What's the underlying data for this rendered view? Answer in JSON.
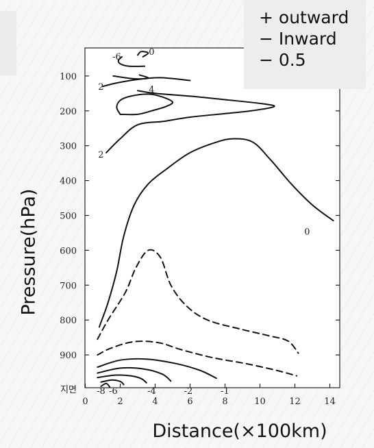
{
  "chart_data": {
    "type": "contour",
    "xlabel": "Distance(×100km)",
    "ylabel": "Pressure(hPa)",
    "x_ticks": [
      "0",
      "2",
      "4",
      "6",
      "8",
      "10",
      "12",
      "14"
    ],
    "y_ticks": [
      "100",
      "200",
      "300",
      "400",
      "500",
      "600",
      "700",
      "800",
      "900",
      "지면"
    ],
    "xlim": [
      0,
      15
    ],
    "ylim": [
      "지면",
      0
    ],
    "legend": [
      {
        "sign": "+",
        "label": "outward"
      },
      {
        "sign": "−",
        "label": "Inward"
      },
      {
        "sign": "−",
        "label": "0.5"
      }
    ],
    "contours": [
      {
        "level": "0",
        "style": "solid",
        "points": [
          [
            0.8,
            820
          ],
          [
            1.3,
            750
          ],
          [
            1.8,
            660
          ],
          [
            2.2,
            560
          ],
          [
            2.8,
            470
          ],
          [
            3.6,
            410
          ],
          [
            4.7,
            365
          ],
          [
            6,
            320
          ],
          [
            7.5,
            290
          ],
          [
            8.5,
            280
          ],
          [
            9.6,
            290
          ],
          [
            10.6,
            340
          ],
          [
            11.8,
            410
          ],
          [
            13,
            470
          ],
          [
            14.2,
            515
          ]
        ]
      },
      {
        "level": "2",
        "style": "solid",
        "points": [
          [
            1.2,
            320
          ],
          [
            2,
            280
          ],
          [
            3,
            240
          ],
          [
            4.5,
            230
          ],
          [
            6,
            218
          ],
          [
            8,
            208
          ],
          [
            9.5,
            200
          ],
          [
            10.8,
            188
          ],
          [
            10.2,
            180
          ],
          [
            8,
            168
          ],
          [
            6,
            158
          ],
          [
            4,
            150
          ],
          [
            3,
            142
          ]
        ]
      },
      {
        "level": "4",
        "style": "solid",
        "points": [
          [
            2,
            210
          ],
          [
            1.8,
            190
          ],
          [
            2,
            170
          ],
          [
            2.6,
            158
          ],
          [
            3.6,
            152
          ],
          [
            4.4,
            160
          ],
          [
            5,
            175
          ],
          [
            4.6,
            188
          ],
          [
            3.8,
            200
          ],
          [
            3,
            210
          ],
          [
            2,
            210
          ]
        ]
      },
      {
        "level": "2",
        "style": "solid",
        "points": [
          [
            1,
            130
          ],
          [
            1.8,
            120
          ],
          [
            3,
            110
          ],
          [
            4.3,
            105
          ],
          [
            6,
            113
          ]
        ]
      },
      {
        "level": "-2",
        "style": "solid",
        "points": [
          [
            1.6,
            100
          ],
          [
            2.8,
            108
          ],
          [
            3.6,
            106
          ],
          [
            3.1,
            97
          ]
        ]
      },
      {
        "level": "-6",
        "style": "solid",
        "points": [
          [
            2.1,
            45
          ],
          [
            1.9,
            55
          ],
          [
            2,
            65
          ],
          [
            2.5,
            72
          ],
          [
            3.4,
            72
          ]
        ]
      },
      {
        "level": "0",
        "style": "solid",
        "points": [
          [
            3,
            40
          ],
          [
            3.2,
            30
          ],
          [
            3.6,
            34
          ],
          [
            3.3,
            45
          ]
        ]
      },
      {
        "level": "-0.5",
        "style": "dashed",
        "points": [
          [
            0.7,
            855
          ],
          [
            1.3,
            800
          ],
          [
            2.3,
            720
          ],
          [
            2.9,
            650
          ],
          [
            3.6,
            600
          ],
          [
            4.3,
            620
          ],
          [
            4.9,
            700
          ],
          [
            5.8,
            760
          ],
          [
            7,
            800
          ],
          [
            8.8,
            825
          ],
          [
            10.5,
            845
          ],
          [
            11.6,
            860
          ],
          [
            12.2,
            895
          ]
        ]
      },
      {
        "level": "-0.5",
        "style": "dashed",
        "points": [
          [
            0.7,
            900
          ],
          [
            1.5,
            880
          ],
          [
            2.8,
            862
          ],
          [
            4.2,
            865
          ],
          [
            5.5,
            885
          ],
          [
            7.3,
            908
          ],
          [
            9.2,
            925
          ],
          [
            11,
            945
          ],
          [
            12.1,
            960
          ]
        ]
      },
      {
        "level": "-1",
        "style": "solid",
        "points": [
          [
            0.7,
            935
          ],
          [
            2,
            915
          ],
          [
            3.5,
            912
          ],
          [
            5.2,
            925
          ],
          [
            6.6,
            945
          ],
          [
            7.5,
            967
          ]
        ]
      },
      {
        "level": "-2",
        "style": "solid",
        "points": [
          [
            0.7,
            952
          ],
          [
            2,
            938
          ],
          [
            3.3,
            940
          ],
          [
            4.4,
            955
          ],
          [
            4.9,
            975
          ]
        ]
      },
      {
        "level": "-4",
        "style": "solid",
        "points": [
          [
            0.7,
            965
          ],
          [
            1.7,
            958
          ],
          [
            2.6,
            960
          ],
          [
            3.2,
            968
          ],
          [
            3.5,
            980
          ]
        ]
      },
      {
        "level": "-6",
        "style": "solid",
        "points": [
          [
            0.9,
            978
          ],
          [
            1.5,
            972
          ],
          [
            2,
            976
          ],
          [
            2.2,
            985
          ]
        ]
      },
      {
        "level": "-8",
        "style": "solid",
        "points": [
          [
            0.9,
            990
          ],
          [
            1.2,
            982
          ],
          [
            1.4,
            992
          ]
        ]
      }
    ],
    "contour_labels": [
      {
        "text": "-6",
        "x": 1.8,
        "y": 46
      },
      {
        "text": "0",
        "x": 3.8,
        "y": 32
      },
      {
        "text": "2",
        "x": 0.9,
        "y": 133
      },
      {
        "text": "4",
        "x": 3.8,
        "y": 140
      },
      {
        "text": "2",
        "x": 0.9,
        "y": 327
      },
      {
        "text": "0",
        "x": 12.7,
        "y": 548
      },
      {
        "text": "-8",
        "x": 0.9,
        "y": 1005
      },
      {
        "text": "-6",
        "x": 1.6,
        "y": 1005
      },
      {
        "text": "-4",
        "x": 3.8,
        "y": 1005
      },
      {
        "text": "-2",
        "x": 5.9,
        "y": 1005
      },
      {
        "text": "-1",
        "x": 8.0,
        "y": 1005
      }
    ]
  }
}
